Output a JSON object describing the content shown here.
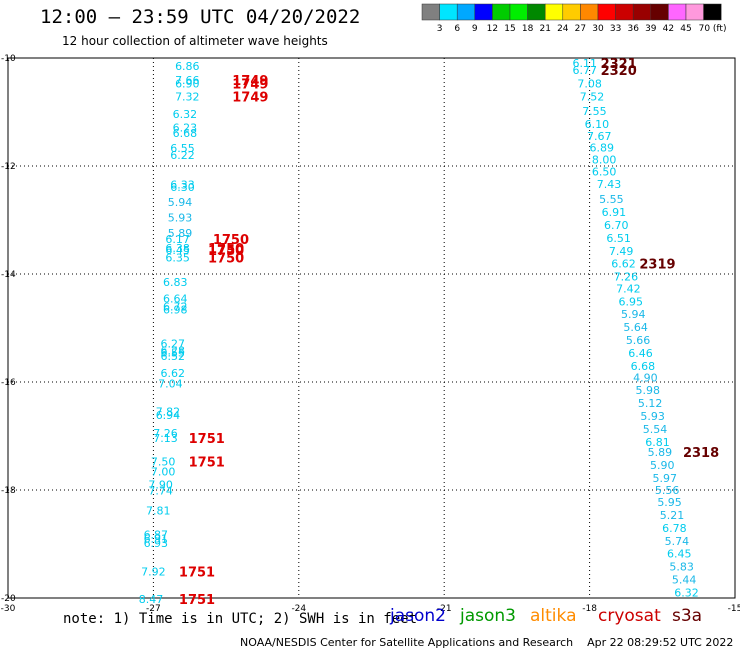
{
  "header": {
    "title": "12:00 – 23:59 UTC 04/20/2022",
    "subtitle": "12 hour collection of altimeter wave heights"
  },
  "footer": {
    "note": "note: 1) Time is in UTC; 2) SWH is in feet",
    "credit": "NOAA/NESDIS Center for Satellite Applications and Research",
    "timestamp": "Apr 22 08:29:52 UTC 2022"
  },
  "satellites": [
    {
      "name": "jason2",
      "color": "#0000cc"
    },
    {
      "name": "jason3",
      "color": "#009900"
    },
    {
      "name": "altika",
      "color": "#ff8c00"
    },
    {
      "name": "cryosat",
      "color": "#cc0000"
    },
    {
      "name": "s3a",
      "color": "#660000"
    }
  ],
  "colorbar": {
    "labels": [
      "3",
      "6",
      "9",
      "12",
      "15",
      "18",
      "21",
      "24",
      "27",
      "30",
      "33",
      "36",
      "39",
      "42",
      "45",
      "70 (ft)"
    ],
    "colors": [
      "#808080",
      "#00e5ff",
      "#00a8ff",
      "#0000ff",
      "#00cc00",
      "#00ee00",
      "#008800",
      "#ffff00",
      "#ffcc00",
      "#ff8800",
      "#ff0000",
      "#cc0000",
      "#990000",
      "#660000",
      "#ff66ff",
      "#ff99dd",
      "#000000"
    ]
  },
  "chart_data": {
    "type": "scatter",
    "xlim": [
      -30,
      -15
    ],
    "ylim": [
      -20,
      -10
    ],
    "x_ticks": [
      -30,
      -27,
      -24,
      -21,
      -18,
      -15
    ],
    "y_ticks": [
      -10,
      -12,
      -14,
      -16,
      -18,
      -20
    ],
    "x_tick_labels": [
      "-30",
      "-27",
      "-24",
      "-21",
      "-18",
      "-15"
    ],
    "y_tick_labels": [
      "-10",
      "-12",
      "-14",
      "-16",
      "-18",
      "-20"
    ],
    "grid": true,
    "wave_colors": {
      "low": "#1ab8e8",
      "high": "#00ccee"
    },
    "time_colors": {
      "cryosat": "#dd0000",
      "s3a": "#660000"
    },
    "tracks": [
      {
        "satellite": "cryosat",
        "points": [
          {
            "lon": -26.3,
            "lat": -10.15,
            "swh": "6.86"
          },
          {
            "lon": -26.3,
            "lat": -10.41,
            "swh": "7.66"
          },
          {
            "lon": -26.3,
            "lat": -10.47,
            "swh": "6.90"
          },
          {
            "lon": -26.3,
            "lat": -10.71,
            "swh": "7.32"
          },
          {
            "lon": -26.35,
            "lat": -11.04,
            "swh": "6.32"
          },
          {
            "lon": -26.35,
            "lat": -11.29,
            "swh": "6.23"
          },
          {
            "lon": -26.35,
            "lat": -11.39,
            "swh": "6.68"
          },
          {
            "lon": -26.4,
            "lat": -11.67,
            "swh": "6.55"
          },
          {
            "lon": -26.4,
            "lat": -11.8,
            "swh": "6.22"
          },
          {
            "lon": -26.4,
            "lat": -12.34,
            "swh": "6.33"
          },
          {
            "lon": -26.4,
            "lat": -12.39,
            "swh": "6.30"
          },
          {
            "lon": -26.45,
            "lat": -12.67,
            "swh": "5.94"
          },
          {
            "lon": -26.45,
            "lat": -12.95,
            "swh": "5.93"
          },
          {
            "lon": -26.45,
            "lat": -13.24,
            "swh": "5.89"
          },
          {
            "lon": -26.5,
            "lat": -13.35,
            "swh": "6.17"
          },
          {
            "lon": -26.5,
            "lat": -13.52,
            "swh": "6.38"
          },
          {
            "lon": -26.5,
            "lat": -13.56,
            "swh": "6.45"
          },
          {
            "lon": -26.5,
            "lat": -13.69,
            "swh": "6.35"
          },
          {
            "lon": -26.55,
            "lat": -14.15,
            "swh": "6.83"
          },
          {
            "lon": -26.55,
            "lat": -14.45,
            "swh": "6.64"
          },
          {
            "lon": -26.55,
            "lat": -14.6,
            "swh": "6.72"
          },
          {
            "lon": -26.55,
            "lat": -14.66,
            "swh": "6.98"
          },
          {
            "lon": -26.6,
            "lat": -15.29,
            "swh": "6.27"
          },
          {
            "lon": -26.6,
            "lat": -15.42,
            "swh": "6.28"
          },
          {
            "lon": -26.6,
            "lat": -15.45,
            "swh": "6.55"
          },
          {
            "lon": -26.6,
            "lat": -15.52,
            "swh": "6.52"
          },
          {
            "lon": -26.6,
            "lat": -15.83,
            "swh": "6.62"
          },
          {
            "lon": -26.65,
            "lat": -16.03,
            "swh": "7.04"
          },
          {
            "lon": -26.7,
            "lat": -16.55,
            "swh": "7.82"
          },
          {
            "lon": -26.7,
            "lat": -16.61,
            "swh": "6.94"
          },
          {
            "lon": -26.75,
            "lat": -16.94,
            "swh": "7.26"
          },
          {
            "lon": -26.75,
            "lat": -17.04,
            "swh": "7.13"
          },
          {
            "lon": -26.8,
            "lat": -17.47,
            "swh": "7.50"
          },
          {
            "lon": -26.8,
            "lat": -17.66,
            "swh": "7.00"
          },
          {
            "lon": -26.85,
            "lat": -17.9,
            "swh": "7.90"
          },
          {
            "lon": -26.85,
            "lat": -18.01,
            "swh": "7.74"
          },
          {
            "lon": -26.9,
            "lat": -18.38,
            "swh": "7.81"
          },
          {
            "lon": -26.95,
            "lat": -18.82,
            "swh": "6.87"
          },
          {
            "lon": -26.95,
            "lat": -18.9,
            "swh": "6.91"
          },
          {
            "lon": -26.95,
            "lat": -18.98,
            "swh": "6.93"
          },
          {
            "lon": -27.0,
            "lat": -19.51,
            "swh": "7.92"
          },
          {
            "lon": -27.05,
            "lat": -20.02,
            "swh": "8.47"
          }
        ],
        "times": [
          {
            "lon": -25.0,
            "lat": -10.41,
            "label": "1749"
          },
          {
            "lon": -25.0,
            "lat": -10.47,
            "label": "1749"
          },
          {
            "lon": -25.0,
            "lat": -10.71,
            "label": "1749"
          },
          {
            "lon": -25.4,
            "lat": -13.35,
            "label": "1750"
          },
          {
            "lon": -25.5,
            "lat": -13.52,
            "label": "1750"
          },
          {
            "lon": -25.5,
            "lat": -13.56,
            "label": "1750"
          },
          {
            "lon": -25.5,
            "lat": -13.69,
            "label": "1750"
          },
          {
            "lon": -25.9,
            "lat": -17.04,
            "label": "1751"
          },
          {
            "lon": -25.9,
            "lat": -17.47,
            "label": "1751"
          },
          {
            "lon": -26.1,
            "lat": -19.51,
            "label": "1751"
          },
          {
            "lon": -26.1,
            "lat": -20.02,
            "label": "1751"
          }
        ]
      },
      {
        "satellite": "s3a",
        "points": [
          {
            "lon": -18.1,
            "lat": -10.09,
            "swh": "6.11"
          },
          {
            "lon": -18.1,
            "lat": -10.22,
            "swh": "6.77"
          },
          {
            "lon": -18.0,
            "lat": -10.47,
            "swh": "7.08"
          },
          {
            "lon": -17.95,
            "lat": -10.71,
            "swh": "7.52"
          },
          {
            "lon": -17.9,
            "lat": -10.98,
            "swh": "7.55"
          },
          {
            "lon": -17.85,
            "lat": -11.22,
            "swh": "6.10"
          },
          {
            "lon": -17.8,
            "lat": -11.44,
            "swh": "7.67"
          },
          {
            "lon": -17.75,
            "lat": -11.66,
            "swh": "6.89"
          },
          {
            "lon": -17.7,
            "lat": -11.88,
            "swh": "8.00"
          },
          {
            "lon": -17.7,
            "lat": -12.1,
            "swh": "6.50"
          },
          {
            "lon": -17.6,
            "lat": -12.33,
            "swh": "7.43"
          },
          {
            "lon": -17.55,
            "lat": -12.61,
            "swh": "5.55"
          },
          {
            "lon": -17.5,
            "lat": -12.85,
            "swh": "6.91"
          },
          {
            "lon": -17.45,
            "lat": -13.09,
            "swh": "6.70"
          },
          {
            "lon": -17.4,
            "lat": -13.33,
            "swh": "6.51"
          },
          {
            "lon": -17.35,
            "lat": -13.57,
            "swh": "7.49"
          },
          {
            "lon": -17.3,
            "lat": -13.81,
            "swh": "6.62"
          },
          {
            "lon": -17.25,
            "lat": -14.05,
            "swh": "7.26"
          },
          {
            "lon": -17.2,
            "lat": -14.27,
            "swh": "7.42"
          },
          {
            "lon": -17.15,
            "lat": -14.51,
            "swh": "6.95"
          },
          {
            "lon": -17.1,
            "lat": -14.74,
            "swh": "5.94"
          },
          {
            "lon": -17.05,
            "lat": -14.98,
            "swh": "5.64"
          },
          {
            "lon": -17.0,
            "lat": -15.22,
            "swh": "5.66"
          },
          {
            "lon": -16.95,
            "lat": -15.46,
            "swh": "6.46"
          },
          {
            "lon": -16.9,
            "lat": -15.7,
            "swh": "6.68"
          },
          {
            "lon": -16.85,
            "lat": -15.92,
            "swh": "4.90"
          },
          {
            "lon": -16.8,
            "lat": -16.15,
            "swh": "5.98"
          },
          {
            "lon": -16.75,
            "lat": -16.39,
            "swh": "5.12"
          },
          {
            "lon": -16.7,
            "lat": -16.63,
            "swh": "5.93"
          },
          {
            "lon": -16.65,
            "lat": -16.87,
            "swh": "5.54"
          },
          {
            "lon": -16.6,
            "lat": -17.11,
            "swh": "6.81"
          },
          {
            "lon": -16.55,
            "lat": -17.3,
            "swh": "5.89"
          },
          {
            "lon": -16.5,
            "lat": -17.54,
            "swh": "5.90"
          },
          {
            "lon": -16.45,
            "lat": -17.78,
            "swh": "5.97"
          },
          {
            "lon": -16.4,
            "lat": -18.0,
            "swh": "5.56"
          },
          {
            "lon": -16.35,
            "lat": -18.22,
            "swh": "5.95"
          },
          {
            "lon": -16.3,
            "lat": -18.46,
            "swh": "5.21"
          },
          {
            "lon": -16.25,
            "lat": -18.7,
            "swh": "6.78"
          },
          {
            "lon": -16.2,
            "lat": -18.94,
            "swh": "5.74"
          },
          {
            "lon": -16.15,
            "lat": -19.18,
            "swh": "6.45"
          },
          {
            "lon": -16.1,
            "lat": -19.42,
            "swh": "5.83"
          },
          {
            "lon": -16.05,
            "lat": -19.66,
            "swh": "5.44"
          },
          {
            "lon": -16.0,
            "lat": -19.9,
            "swh": "6.32"
          }
        ],
        "times": [
          {
            "lon": -17.4,
            "lat": -10.09,
            "label": "2321"
          },
          {
            "lon": -17.4,
            "lat": -10.22,
            "label": "2320"
          },
          {
            "lon": -16.6,
            "lat": -13.81,
            "label": "2319"
          },
          {
            "lon": -15.7,
            "lat": -17.3,
            "label": "2318"
          }
        ]
      }
    ]
  }
}
